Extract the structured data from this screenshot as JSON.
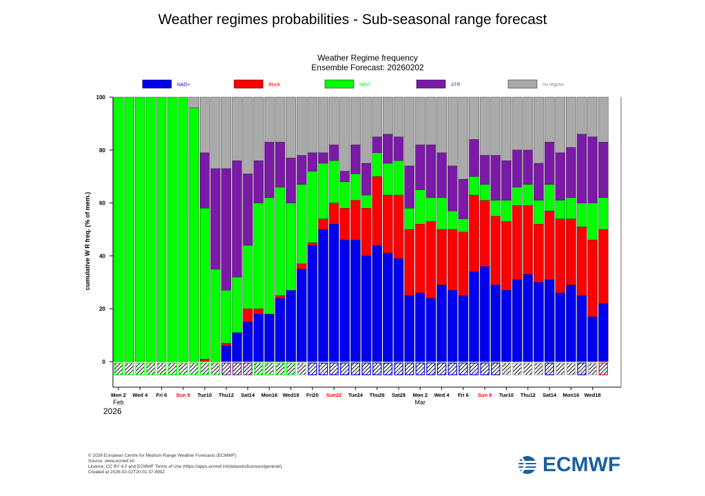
{
  "page_title": "Weather regimes probabilities - Sub-seasonal range forecast",
  "footer": {
    "line1": "© 2026 European Centre for Medium-Range Weather Forecasts (ECMWF)",
    "line2": "Source: www.ecmwf.int",
    "line3": "Licence: CC BY 4.0 and ECMWF Terms of Use (https://apps.ecmwf.int/datasets/licences/general/)",
    "line4": "Created at 2026-02-02T20:01:37.499Z"
  },
  "logo": {
    "text": "ECMWF",
    "color": "#1a5fa0"
  },
  "colors": {
    "nao_plus": "#0000ee",
    "block": "#ff0000",
    "nao_minus": "#00ff00",
    "atr": "#7a1aa6",
    "no_regime": "#aaaaaa"
  },
  "chart_data": {
    "type": "bar",
    "stacked": true,
    "title": "Weather Regime frequency",
    "subtitle": "Ensemble Forecast: 20260202",
    "ylabel": "cumulative W R freq. (% of mem.)",
    "xlabel": "",
    "ylim": [
      0,
      100
    ],
    "yticks": [
      0,
      20,
      40,
      60,
      80,
      100
    ],
    "legend": [
      "NAO+",
      "Block",
      "NAO-",
      "ATR",
      "no regime"
    ],
    "xtick_labels": [
      {
        "day": 0,
        "text": "Mon 2",
        "red": false
      },
      {
        "day": 2,
        "text": "Wed 4",
        "red": false
      },
      {
        "day": 4,
        "text": "Fri 6",
        "red": false
      },
      {
        "day": 6,
        "text": "Sun 8",
        "red": true
      },
      {
        "day": 8,
        "text": "Tue10",
        "red": false
      },
      {
        "day": 10,
        "text": "Thu12",
        "red": false
      },
      {
        "day": 12,
        "text": "Sat14",
        "red": false
      },
      {
        "day": 14,
        "text": "Mon16",
        "red": false
      },
      {
        "day": 16,
        "text": "Wed18",
        "red": false
      },
      {
        "day": 18,
        "text": "Fri20",
        "red": false
      },
      {
        "day": 20,
        "text": "Sun22",
        "red": true
      },
      {
        "day": 22,
        "text": "Tue24",
        "red": false
      },
      {
        "day": 24,
        "text": "Thu26",
        "red": false
      },
      {
        "day": 26,
        "text": "Sat28",
        "red": false
      },
      {
        "day": 28,
        "text": "Mon 2",
        "red": false
      },
      {
        "day": 30,
        "text": "Wed 4",
        "red": false
      },
      {
        "day": 32,
        "text": "Fri 6",
        "red": false
      },
      {
        "day": 34,
        "text": "Sun 8",
        "red": true
      },
      {
        "day": 36,
        "text": "Tue10",
        "red": false
      },
      {
        "day": 38,
        "text": "Thu12",
        "red": false
      },
      {
        "day": 40,
        "text": "Sat14",
        "red": false
      },
      {
        "day": 42,
        "text": "Mon16",
        "red": false
      },
      {
        "day": 44,
        "text": "Wed18",
        "red": false
      }
    ],
    "month_labels": [
      {
        "day": 0,
        "text": "Feb"
      },
      {
        "day": 28,
        "text": "Mar"
      }
    ],
    "year_label": "2026",
    "series": [
      {
        "name": "NAO+",
        "values": [
          0,
          0,
          0,
          0,
          0,
          0,
          0,
          0,
          0,
          0,
          6,
          11,
          15,
          18,
          18,
          24,
          27,
          35,
          44,
          50,
          52,
          46,
          46,
          40,
          44,
          41,
          39,
          25,
          26,
          24,
          29,
          27,
          25,
          34,
          36,
          29,
          27,
          31,
          33,
          30,
          31,
          26,
          29,
          25,
          17,
          22
        ]
      },
      {
        "name": "Block",
        "values": [
          0,
          0,
          0,
          0,
          0,
          0,
          0,
          0,
          1,
          0,
          1,
          0,
          5,
          2,
          0,
          1,
          0,
          2,
          1,
          4,
          8,
          12,
          15,
          18,
          26,
          22,
          24,
          25,
          26,
          29,
          21,
          23,
          24,
          29,
          25,
          26,
          26,
          28,
          26,
          22,
          26,
          28,
          25,
          26,
          29,
          28
        ]
      },
      {
        "name": "NAO-",
        "values": [
          100,
          100,
          100,
          100,
          100,
          100,
          100,
          96,
          57,
          35,
          20,
          21,
          24,
          40,
          44,
          41,
          33,
          30,
          27,
          21,
          16,
          10,
          10,
          5,
          9,
          12,
          13,
          8,
          13,
          9,
          12,
          7,
          5,
          7,
          6,
          6,
          8,
          7,
          8,
          9,
          10,
          7,
          8,
          9,
          14,
          12
        ]
      },
      {
        "name": "ATR",
        "values": [
          0,
          0,
          0,
          0,
          0,
          0,
          0,
          0,
          21,
          38,
          46,
          44,
          27,
          16,
          21,
          17,
          17,
          11,
          7,
          4,
          6,
          4,
          11,
          12,
          6,
          11,
          9,
          16,
          17,
          20,
          17,
          17,
          15,
          14,
          11,
          17,
          15,
          14,
          13,
          14,
          16,
          18,
          19,
          26,
          25,
          21
        ]
      },
      {
        "name": "no regime",
        "values": [
          0,
          0,
          0,
          0,
          0,
          0,
          0,
          4,
          21,
          27,
          27,
          24,
          29,
          24,
          17,
          17,
          23,
          22,
          21,
          21,
          18,
          28,
          18,
          25,
          15,
          14,
          15,
          26,
          18,
          18,
          21,
          26,
          31,
          16,
          22,
          22,
          24,
          20,
          20,
          25,
          17,
          21,
          19,
          14,
          15,
          17
        ]
      }
    ],
    "dominant_regime": [
      2,
      2,
      2,
      2,
      2,
      2,
      2,
      2,
      2,
      2,
      3,
      3,
      3,
      2,
      2,
      2,
      2,
      -1,
      0,
      0,
      0,
      0,
      0,
      0,
      0,
      0,
      0,
      0,
      0,
      0,
      0,
      0,
      0,
      0,
      0,
      0,
      -1,
      -1,
      -1,
      -1,
      0,
      -1,
      -1,
      0,
      -1,
      1
    ]
  }
}
